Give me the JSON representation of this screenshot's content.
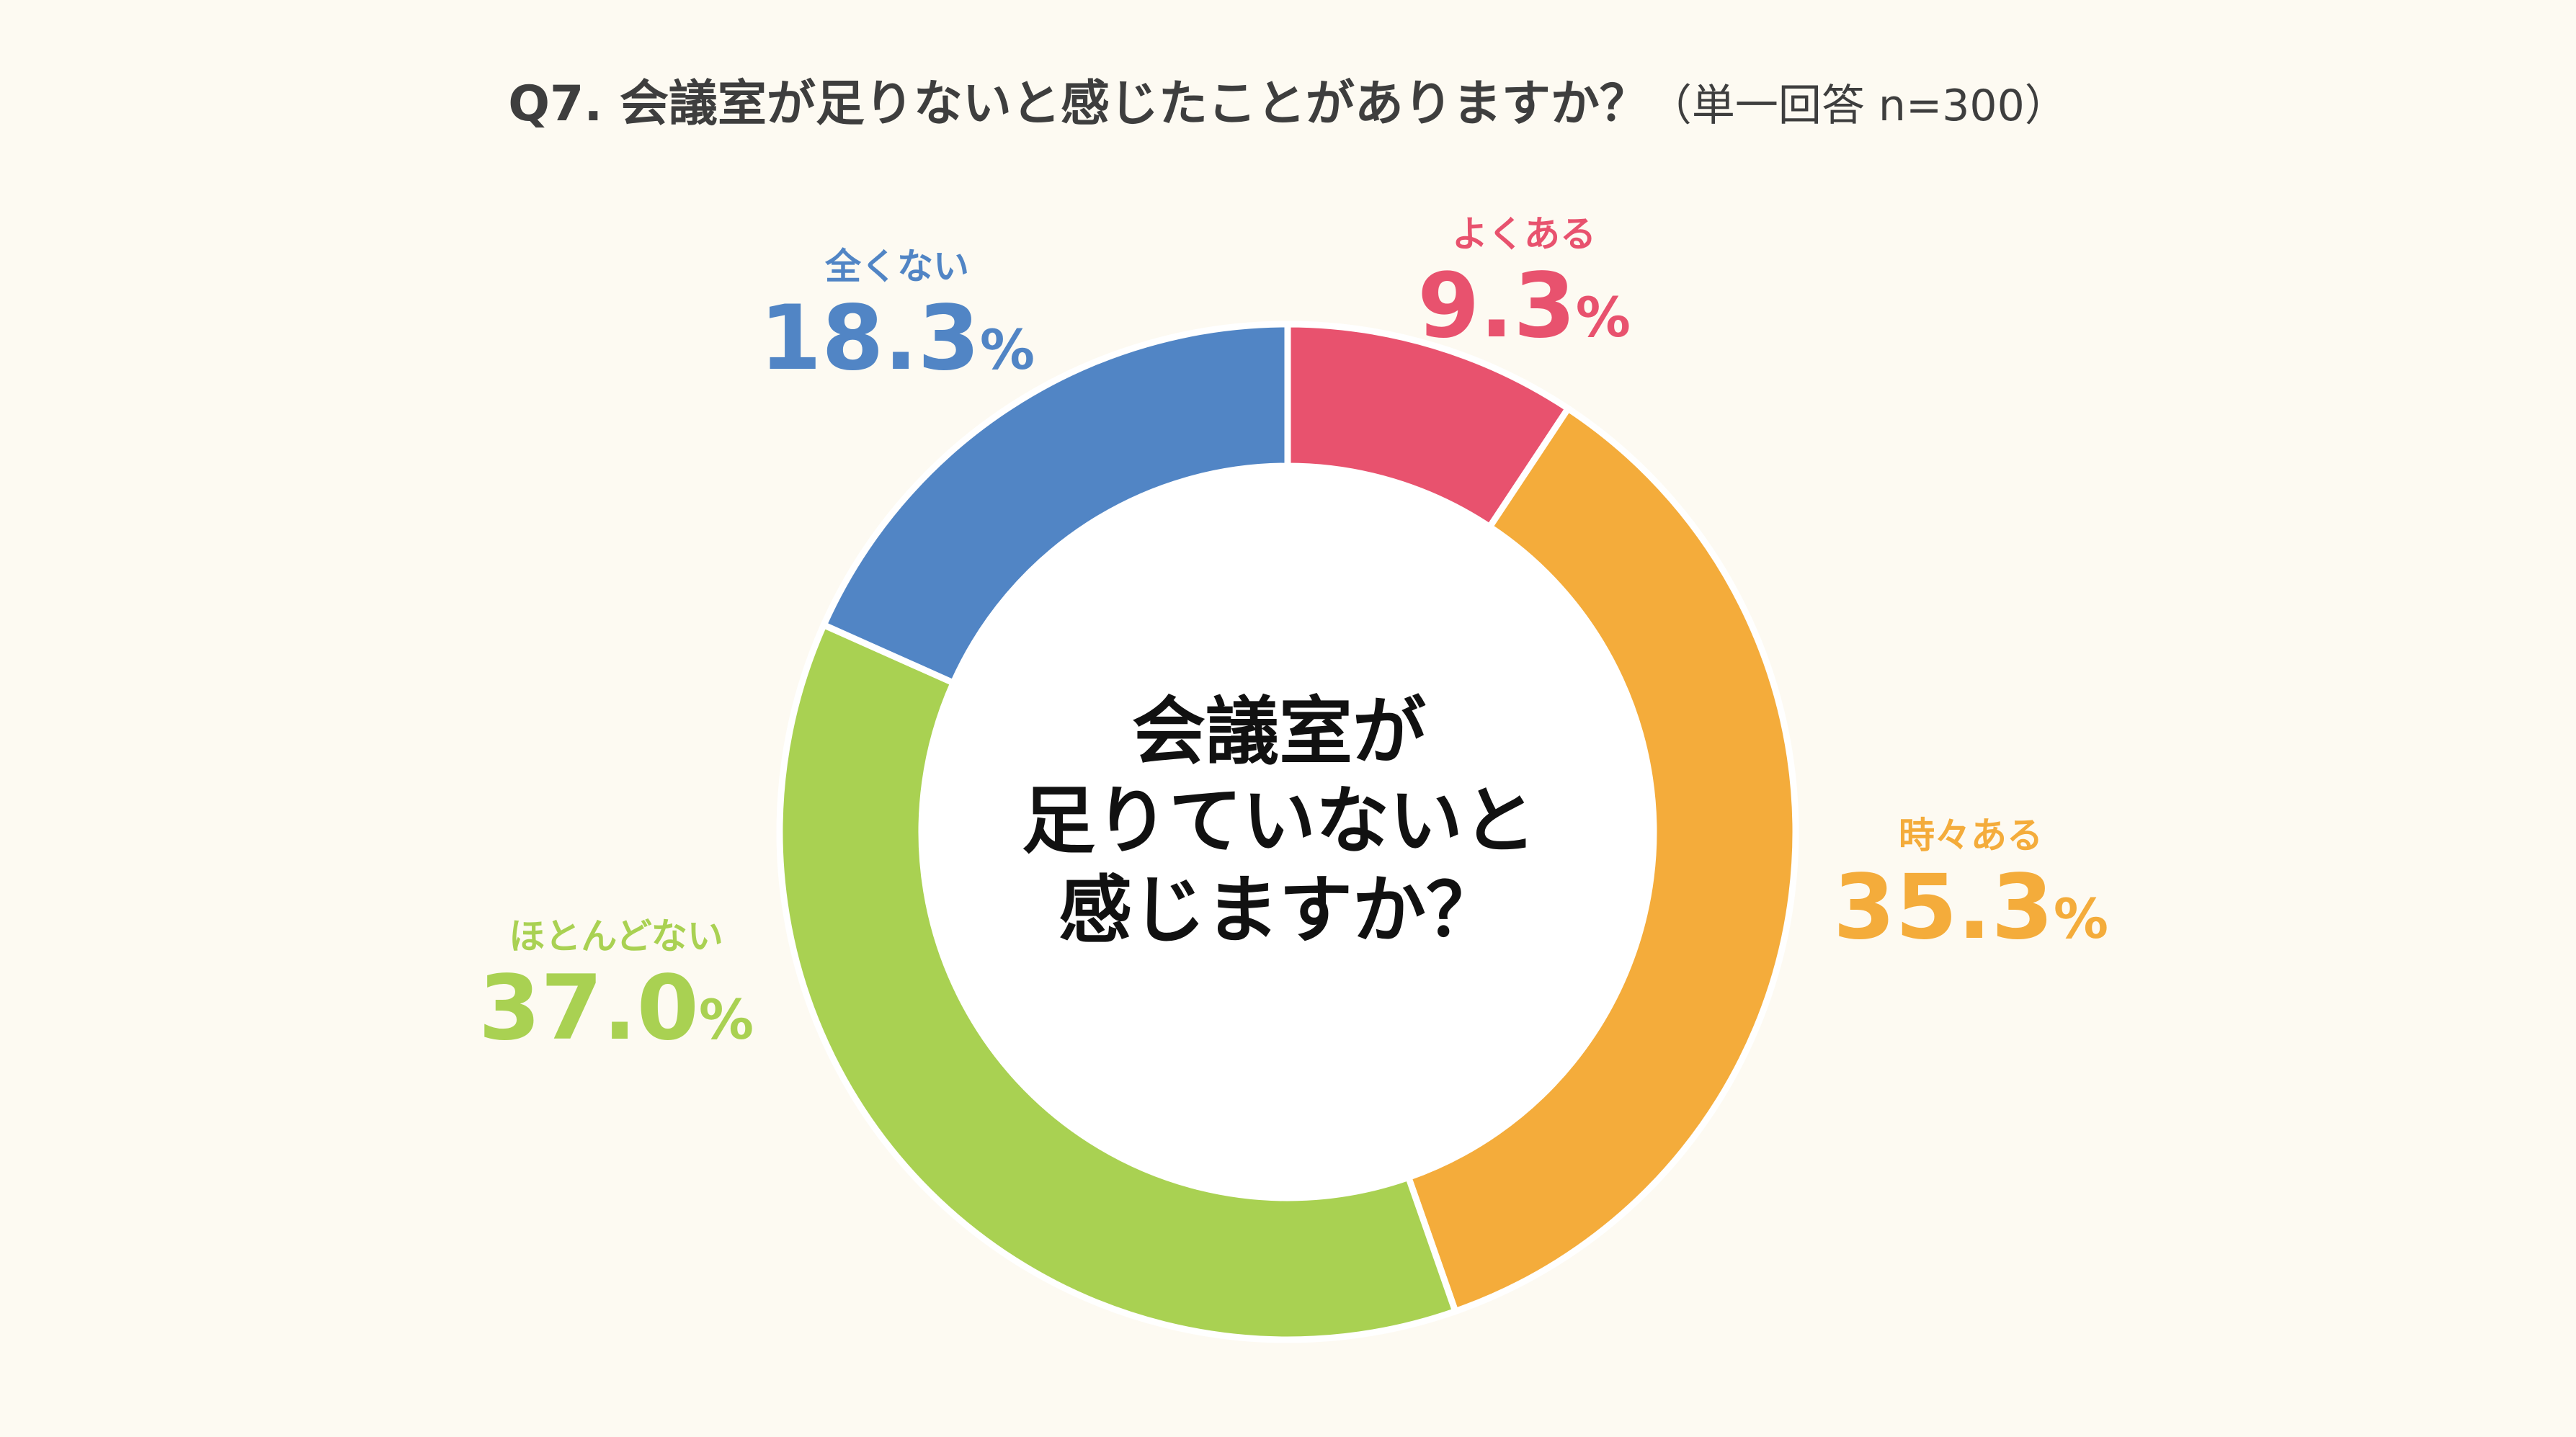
{
  "title": {
    "main": "Q7. 会議室が足りないと感じたことがありますか？",
    "sub": "（単一回答 n=300）"
  },
  "center_text": [
    "会議室が",
    "足りていないと",
    "感じますか？"
  ],
  "chart_data": {
    "type": "pie",
    "variant": "donut",
    "title": "Q7. 会議室が足りないと感じたことがありますか？（単一回答 n=300）",
    "unit": "%",
    "slices": [
      {
        "label": "よくある",
        "value": 9.3,
        "display": "9.3",
        "color": "#E8526E"
      },
      {
        "label": "時々ある",
        "value": 35.3,
        "display": "35.3",
        "color": "#F4AC3B"
      },
      {
        "label": "ほとんどない",
        "value": 37.0,
        "display": "37.0",
        "color": "#A9D152"
      },
      {
        "label": "全くない",
        "value": 18.3,
        "display": "18.3",
        "color": "#5185C5"
      }
    ],
    "start": "12 o'clock",
    "direction": "clockwise",
    "legend": "none"
  }
}
